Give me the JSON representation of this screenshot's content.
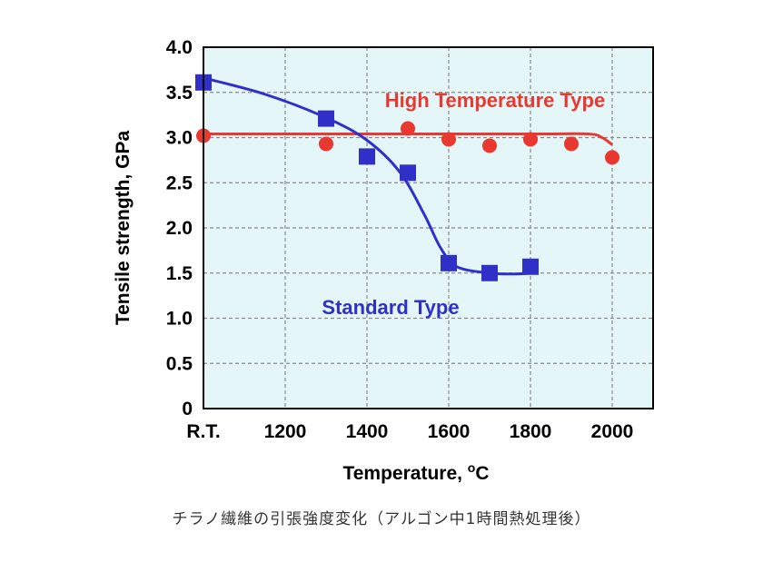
{
  "chart_data": {
    "type": "scatter",
    "xlabel": "Temperature, ",
    "xlabel_unit_sup": "o",
    "xlabel_unit": "C",
    "ylabel": "Tensile strength, GPa",
    "xlim": [
      1000,
      2100
    ],
    "ylim": [
      0,
      4.0
    ],
    "x_ticks": [
      {
        "value": 1000,
        "label": "R.T."
      },
      {
        "value": 1200,
        "label": "1200"
      },
      {
        "value": 1400,
        "label": "1400"
      },
      {
        "value": 1600,
        "label": "1600"
      },
      {
        "value": 1800,
        "label": "1800"
      },
      {
        "value": 2000,
        "label": "2000"
      }
    ],
    "y_ticks": [
      {
        "value": 0,
        "label": "0"
      },
      {
        "value": 0.5,
        "label": "0.5"
      },
      {
        "value": 1.0,
        "label": "1.0"
      },
      {
        "value": 1.5,
        "label": "1.5"
      },
      {
        "value": 2.0,
        "label": "2.0"
      },
      {
        "value": 2.5,
        "label": "2.5"
      },
      {
        "value": 3.0,
        "label": "3.0"
      },
      {
        "value": 3.5,
        "label": "3.5"
      },
      {
        "value": 4.0,
        "label": "4.0"
      }
    ],
    "grid": true,
    "background_color": "#e4f6f8",
    "series": [
      {
        "name": "High Temperature Type",
        "color": "#e8382f",
        "marker": "circle",
        "points": [
          [
            1000,
            3.02
          ],
          [
            1300,
            2.93
          ],
          [
            1500,
            3.1
          ],
          [
            1600,
            2.98
          ],
          [
            1700,
            2.91
          ],
          [
            1800,
            2.98
          ],
          [
            1900,
            2.93
          ],
          [
            2000,
            2.78
          ]
        ],
        "trend": [
          [
            1000,
            3.04
          ],
          [
            1400,
            3.04
          ],
          [
            1800,
            3.04
          ],
          [
            1940,
            3.04
          ],
          [
            1975,
            3.0
          ],
          [
            2000,
            2.92
          ]
        ]
      },
      {
        "name": "Standard Type",
        "color": "#3030c8",
        "marker": "square",
        "points": [
          [
            1000,
            3.61
          ],
          [
            1300,
            3.21
          ],
          [
            1400,
            2.79
          ],
          [
            1500,
            2.61
          ],
          [
            1600,
            1.61
          ],
          [
            1700,
            1.5
          ],
          [
            1800,
            1.57
          ]
        ],
        "trend": [
          [
            1000,
            3.66
          ],
          [
            1150,
            3.48
          ],
          [
            1300,
            3.22
          ],
          [
            1400,
            2.97
          ],
          [
            1480,
            2.62
          ],
          [
            1540,
            2.15
          ],
          [
            1580,
            1.78
          ],
          [
            1620,
            1.57
          ],
          [
            1700,
            1.5
          ],
          [
            1760,
            1.49
          ],
          [
            1800,
            1.5
          ]
        ]
      }
    ]
  },
  "caption": "チラノ繊維の引張強度変化（アルゴン中1時間熱処理後）"
}
